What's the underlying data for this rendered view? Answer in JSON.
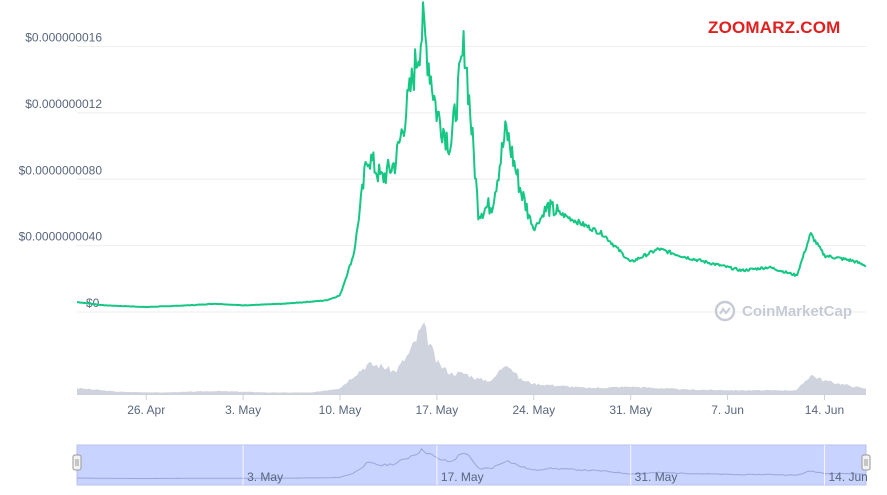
{
  "header": {
    "watermark": "ZOOMARZ.COM"
  },
  "branding": {
    "label": "CoinMarketCap",
    "icon": "coinmarketcap-logo-icon"
  },
  "chart_data": {
    "type": "line",
    "title": "",
    "xlabel": "",
    "ylabel": "",
    "ylim": [
      0,
      1.76e-08
    ],
    "y_ticks": [
      {
        "value": 0,
        "label": "$0"
      },
      {
        "value": 4e-09,
        "label": "$0.0000000040"
      },
      {
        "value": 8e-09,
        "label": "$0.0000000080"
      },
      {
        "value": 1.2e-08,
        "label": "$0.000000012"
      },
      {
        "value": 1.6e-08,
        "label": "$0.000000016"
      }
    ],
    "x_range": [
      "2021-04-21",
      "2021-06-17"
    ],
    "x_ticks": [
      {
        "date": "2021-04-26",
        "label": "26. Apr"
      },
      {
        "date": "2021-05-03",
        "label": "3. May"
      },
      {
        "date": "2021-05-10",
        "label": "10. May"
      },
      {
        "date": "2021-05-17",
        "label": "17. May"
      },
      {
        "date": "2021-05-24",
        "label": "24. May"
      },
      {
        "date": "2021-05-31",
        "label": "31. May"
      },
      {
        "date": "2021-06-07",
        "label": "7. Jun"
      },
      {
        "date": "2021-06-14",
        "label": "14. Jun"
      }
    ],
    "navigator_ticks": [
      {
        "date": "2021-05-03",
        "label": "3. May"
      },
      {
        "date": "2021-05-17",
        "label": "17. May"
      },
      {
        "date": "2021-05-31",
        "label": "31. May"
      },
      {
        "date": "2021-06-14",
        "label": "14. Jun"
      }
    ],
    "series": [
      {
        "values": [
          [
            "2021-04-21",
            6e-10
          ],
          [
            "2021-04-23",
            4e-10
          ],
          [
            "2021-04-26",
            3e-10
          ],
          [
            "2021-04-29",
            4e-10
          ],
          [
            "2021-05-01",
            5e-10
          ],
          [
            "2021-05-03",
            4e-10
          ],
          [
            "2021-05-06",
            5e-10
          ],
          [
            "2021-05-09",
            7e-10
          ],
          [
            "2021-05-10",
            1e-09
          ],
          [
            "2021-05-11",
            3.5e-09
          ],
          [
            "2021-05-12",
            9.5e-09
          ],
          [
            "2021-05-13",
            8e-09
          ],
          [
            "2021-05-14",
            9e-09
          ],
          [
            "2021-05-15",
            1.3e-08
          ],
          [
            "2021-05-16",
            1.72e-08
          ],
          [
            "2021-05-17",
            1.2e-08
          ],
          [
            "2021-05-18",
            1e-08
          ],
          [
            "2021-05-19",
            1.62e-08
          ],
          [
            "2021-05-20",
            6e-09
          ],
          [
            "2021-05-21",
            6.5e-09
          ],
          [
            "2021-05-22",
            1.1e-08
          ],
          [
            "2021-05-23",
            7.5e-09
          ],
          [
            "2021-05-24",
            5e-09
          ],
          [
            "2021-05-25",
            6.3e-09
          ],
          [
            "2021-05-27",
            5.5e-09
          ],
          [
            "2021-05-29",
            4.7e-09
          ],
          [
            "2021-05-31",
            3e-09
          ],
          [
            "2021-06-02",
            3.8e-09
          ],
          [
            "2021-06-04",
            3.3e-09
          ],
          [
            "2021-06-06",
            2.9e-09
          ],
          [
            "2021-06-08",
            2.5e-09
          ],
          [
            "2021-06-10",
            2.7e-09
          ],
          [
            "2021-06-12",
            2.2e-09
          ],
          [
            "2021-06-13",
            4.7e-09
          ],
          [
            "2021-06-14",
            3.4e-09
          ],
          [
            "2021-06-16",
            3.1e-09
          ],
          [
            "2021-06-17",
            2.8e-09
          ]
        ]
      }
    ],
    "volume": [
      [
        "2021-04-21",
        0.08
      ],
      [
        "2021-04-24",
        0.03
      ],
      [
        "2021-04-27",
        0.02
      ],
      [
        "2021-05-01",
        0.04
      ],
      [
        "2021-05-05",
        0.02
      ],
      [
        "2021-05-08",
        0.02
      ],
      [
        "2021-05-10",
        0.08
      ],
      [
        "2021-05-11",
        0.25
      ],
      [
        "2021-05-12",
        0.4
      ],
      [
        "2021-05-13",
        0.38
      ],
      [
        "2021-05-14",
        0.3
      ],
      [
        "2021-05-15",
        0.55
      ],
      [
        "2021-05-16",
        0.92
      ],
      [
        "2021-05-17",
        0.42
      ],
      [
        "2021-05-18",
        0.28
      ],
      [
        "2021-05-19",
        0.28
      ],
      [
        "2021-05-20",
        0.2
      ],
      [
        "2021-05-21",
        0.18
      ],
      [
        "2021-05-22",
        0.44
      ],
      [
        "2021-05-23",
        0.2
      ],
      [
        "2021-05-24",
        0.14
      ],
      [
        "2021-05-28",
        0.08
      ],
      [
        "2021-05-31",
        0.1
      ],
      [
        "2021-06-04",
        0.06
      ],
      [
        "2021-06-08",
        0.05
      ],
      [
        "2021-06-12",
        0.05
      ],
      [
        "2021-06-13",
        0.26
      ],
      [
        "2021-06-14",
        0.18
      ],
      [
        "2021-06-17",
        0.07
      ]
    ],
    "colors": {
      "line": "#16c784",
      "volume": "#cfd3de",
      "navigator_fill": "#c9d3ff",
      "navigator_line": "#9aa5d8",
      "grid": "#eeeeee",
      "axis_text": "#58667e",
      "watermark": "#e0201f"
    },
    "grid": true
  }
}
